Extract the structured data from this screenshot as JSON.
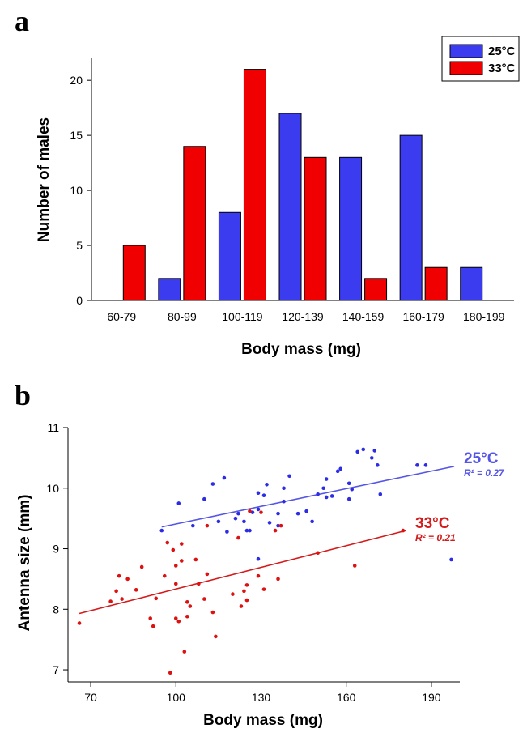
{
  "colors": {
    "blue": "#3b3bf0",
    "red": "#f00000",
    "blue_line": "#5555e6",
    "red_line": "#d41a1a",
    "blue_point": "#2c2ce6",
    "red_point": "#dd1111"
  },
  "chart_data": [
    {
      "panel": "a",
      "type": "bar",
      "xlabel": "Body mass (mg)",
      "ylabel": "Number of males",
      "ylim": [
        0,
        22
      ],
      "yticks": [
        "0",
        "5",
        "10",
        "15",
        "20"
      ],
      "categories": [
        "60-79",
        "80-99",
        "100-119",
        "120-139",
        "140-159",
        "160-179",
        "180-199"
      ],
      "legend_position": "top-right",
      "series": [
        {
          "name": "25°C",
          "color": "#3b3bf0",
          "values": [
            0,
            2,
            8,
            17,
            13,
            15,
            3
          ]
        },
        {
          "name": "33°C",
          "color": "#f00000",
          "values": [
            5,
            14,
            21,
            13,
            2,
            3,
            0
          ]
        }
      ]
    },
    {
      "panel": "b",
      "type": "scatter",
      "xlabel": "Body mass (mg)",
      "ylabel": "Antenna size (mm)",
      "xlim": [
        62,
        200
      ],
      "ylim": [
        6.8,
        11
      ],
      "xticks": [
        "70",
        "100",
        "130",
        "160",
        "190"
      ],
      "yticks": [
        "7",
        "8",
        "9",
        "10",
        "11"
      ],
      "series": [
        {
          "name": "25°C",
          "color": "#2c2ce6",
          "r2_label": "R² = 0.27",
          "fit": {
            "x": [
              95,
              198
            ],
            "y": [
              9.36,
              10.36
            ]
          },
          "points": [
            [
              95,
              9.3
            ],
            [
              101,
              9.75
            ],
            [
              106,
              9.38
            ],
            [
              110,
              9.82
            ],
            [
              113,
              10.07
            ],
            [
              115,
              9.45
            ],
            [
              117,
              10.17
            ],
            [
              118,
              9.28
            ],
            [
              121,
              9.5
            ],
            [
              122,
              9.58
            ],
            [
              124,
              9.45
            ],
            [
              125,
              9.3
            ],
            [
              126,
              9.3
            ],
            [
              127,
              9.6
            ],
            [
              129,
              9.65
            ],
            [
              129,
              9.92
            ],
            [
              131,
              9.88
            ],
            [
              132,
              10.06
            ],
            [
              133,
              9.43
            ],
            [
              136,
              9.58
            ],
            [
              136,
              9.38
            ],
            [
              138,
              9.78
            ],
            [
              138,
              10.0
            ],
            [
              140,
              10.2
            ],
            [
              143,
              9.58
            ],
            [
              146,
              9.62
            ],
            [
              148,
              9.45
            ],
            [
              150,
              9.9
            ],
            [
              152,
              10.0
            ],
            [
              153,
              10.15
            ],
            [
              153,
              9.85
            ],
            [
              155,
              9.87
            ],
            [
              157,
              10.28
            ],
            [
              158,
              10.32
            ],
            [
              161,
              10.08
            ],
            [
              161,
              9.82
            ],
            [
              162,
              9.98
            ],
            [
              164,
              10.6
            ],
            [
              166,
              10.64
            ],
            [
              169,
              10.5
            ],
            [
              170,
              10.62
            ],
            [
              171,
              10.38
            ],
            [
              172,
              9.9
            ],
            [
              185,
              10.38
            ],
            [
              188,
              10.38
            ],
            [
              197,
              8.82
            ],
            [
              129,
              8.83
            ]
          ]
        },
        {
          "name": "33°C",
          "color": "#dd1111",
          "r2_label": "R² = 0.21",
          "fit": {
            "x": [
              66,
              181
            ],
            "y": [
              7.93,
              9.3
            ]
          },
          "points": [
            [
              66,
              7.77
            ],
            [
              77,
              8.13
            ],
            [
              79,
              8.3
            ],
            [
              80,
              8.55
            ],
            [
              81,
              8.17
            ],
            [
              83,
              8.5
            ],
            [
              86,
              8.32
            ],
            [
              88,
              8.7
            ],
            [
              91,
              7.85
            ],
            [
              92,
              7.72
            ],
            [
              93,
              8.18
            ],
            [
              96,
              8.55
            ],
            [
              97,
              9.1
            ],
            [
              98,
              6.95
            ],
            [
              99,
              8.98
            ],
            [
              100,
              8.72
            ],
            [
              100,
              8.42
            ],
            [
              100,
              7.85
            ],
            [
              101,
              7.8
            ],
            [
              102,
              9.08
            ],
            [
              102,
              8.8
            ],
            [
              103,
              7.3
            ],
            [
              104,
              8.12
            ],
            [
              104,
              7.88
            ],
            [
              105,
              8.05
            ],
            [
              107,
              8.82
            ],
            [
              108,
              8.42
            ],
            [
              110,
              8.17
            ],
            [
              111,
              8.58
            ],
            [
              111,
              9.38
            ],
            [
              113,
              7.95
            ],
            [
              114,
              7.55
            ],
            [
              120,
              8.25
            ],
            [
              122,
              9.18
            ],
            [
              123,
              8.05
            ],
            [
              124,
              8.3
            ],
            [
              125,
              8.15
            ],
            [
              125,
              8.4
            ],
            [
              126,
              9.62
            ],
            [
              129,
              8.55
            ],
            [
              130,
              9.6
            ],
            [
              131,
              8.33
            ],
            [
              135,
              9.3
            ],
            [
              136,
              8.5
            ],
            [
              137,
              9.38
            ],
            [
              150,
              8.93
            ],
            [
              163,
              8.72
            ],
            [
              180,
              9.3
            ]
          ]
        }
      ]
    }
  ]
}
